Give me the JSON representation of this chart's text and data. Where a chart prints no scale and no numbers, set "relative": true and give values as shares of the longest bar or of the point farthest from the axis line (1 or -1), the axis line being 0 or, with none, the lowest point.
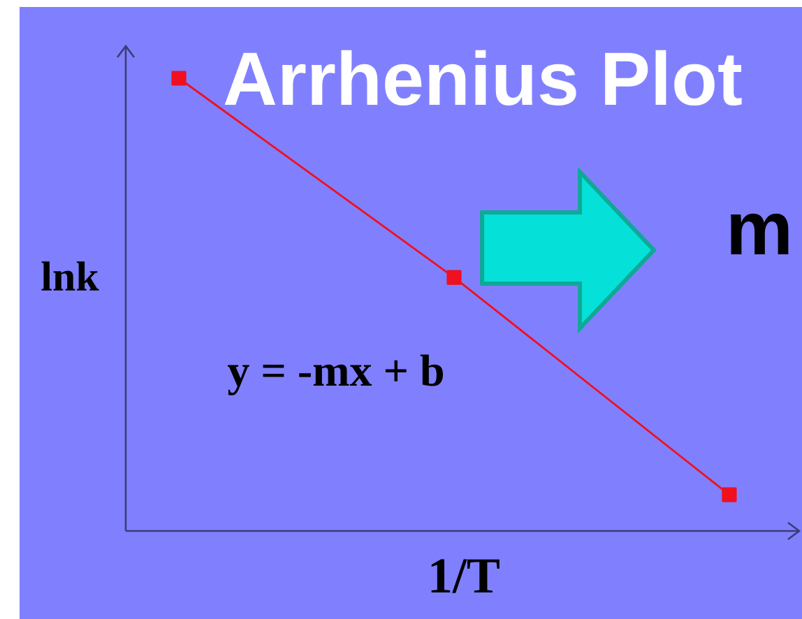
{
  "chart_data": {
    "type": "line",
    "title": "Arrhenius Plot",
    "xlabel": "1/T",
    "ylabel": "lnk",
    "annotations": [
      "y = -mx + b",
      "m"
    ],
    "categories": [
      null,
      null,
      null
    ],
    "relative": true,
    "series": [
      {
        "color": "#f01020",
        "values": [
          1,
          0.56,
          0.08
        ]
      }
    ],
    "marker": "square",
    "line_style": "solid"
  }
}
